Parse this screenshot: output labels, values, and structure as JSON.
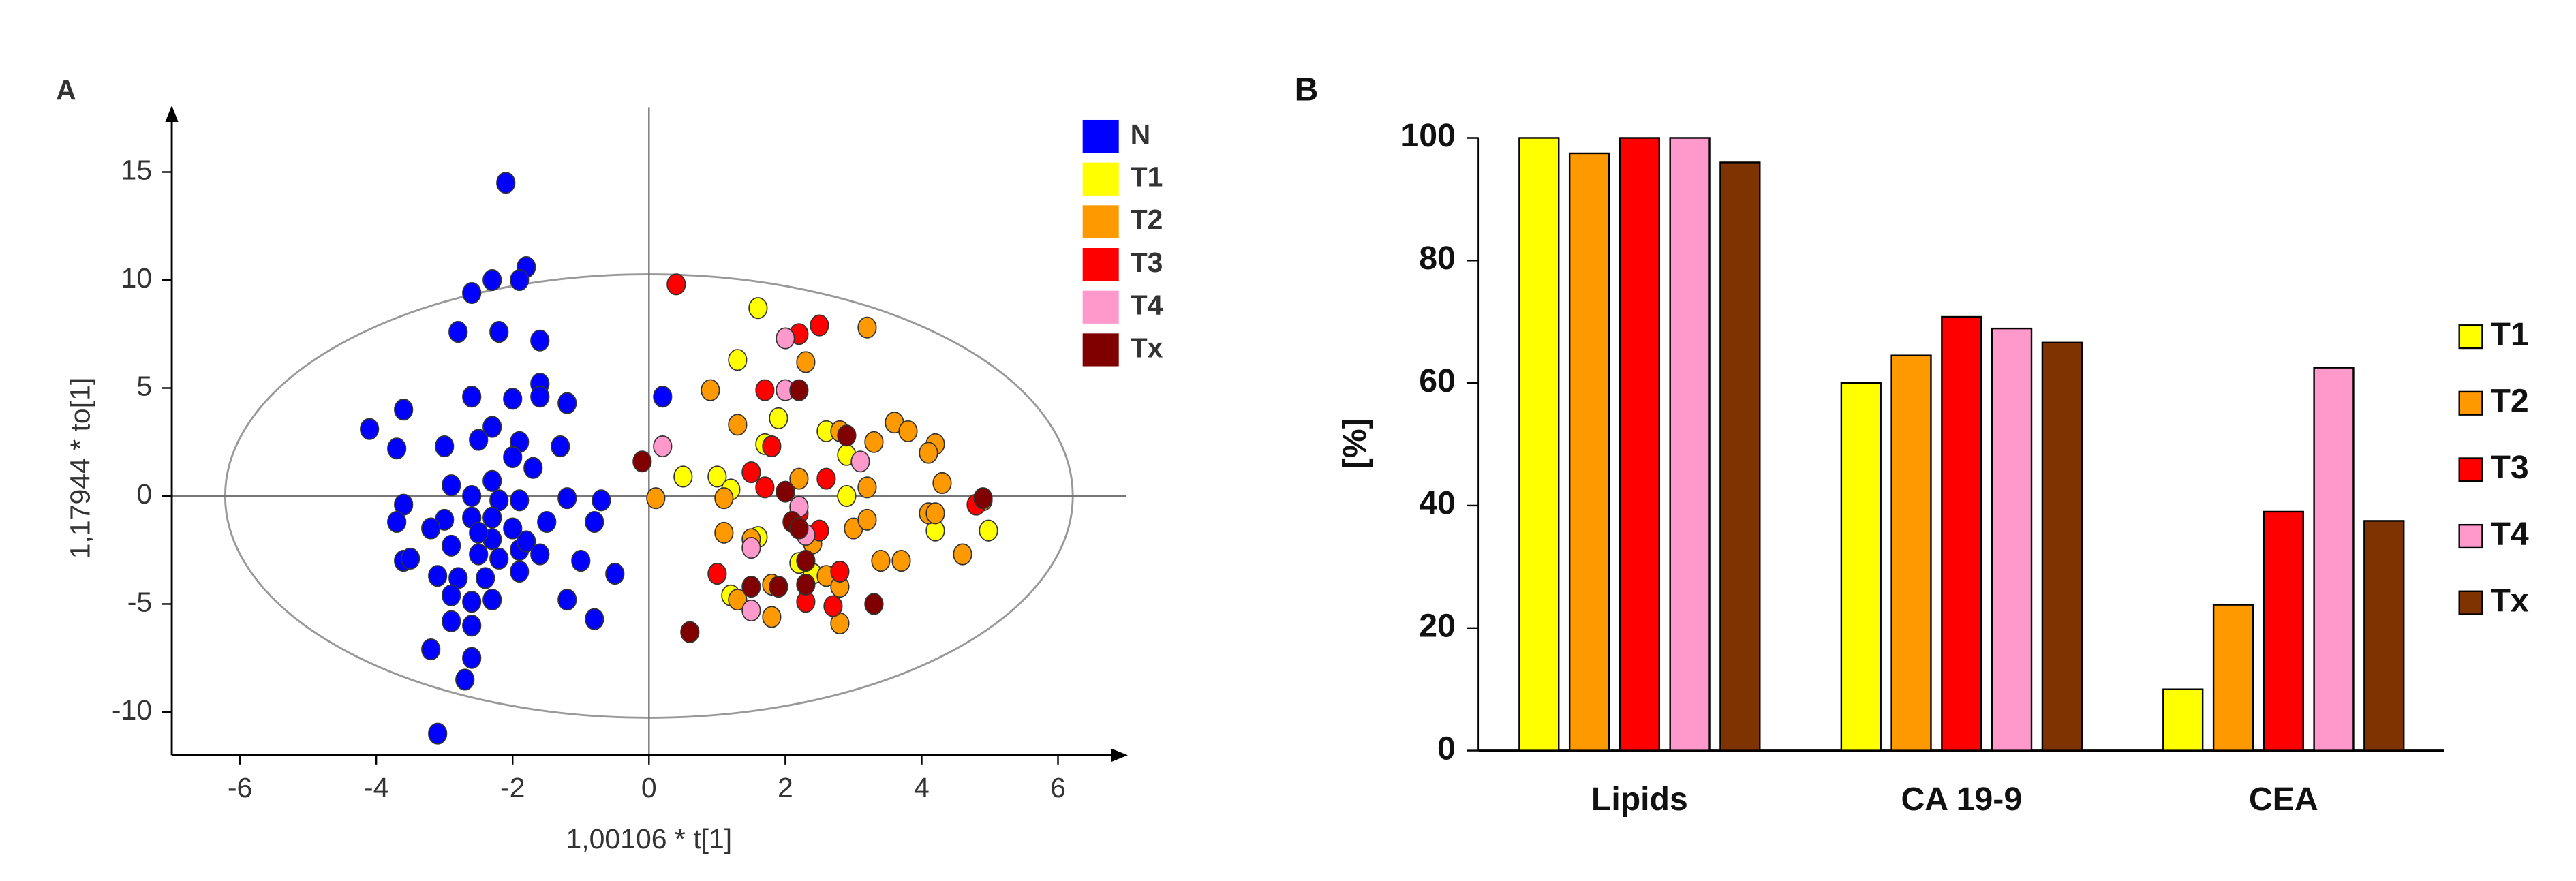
{
  "chart_data": [
    {
      "type": "scatter",
      "panel_label": "A",
      "xlabel": "1,00106 * t[1]",
      "ylabel": "1,17944 * to[1]",
      "xlim": [
        -7,
        7
      ],
      "ylim": [
        -12,
        18
      ],
      "xticks": [
        -6,
        -4,
        -2,
        0,
        2,
        4,
        6
      ],
      "yticks": [
        -10,
        -5,
        0,
        5,
        10,
        15
      ],
      "series": [
        {
          "name": "N",
          "color": "#0000ff",
          "x": [
            -2.1,
            -1.8,
            -1.9,
            -2.3,
            -2.6,
            -2.8,
            -2.2,
            -1.6,
            -4.1,
            -3.6,
            -1.6,
            -1.6,
            -1.2,
            -2.6,
            -2.0,
            0.2,
            -2.3,
            -2.5,
            -1.9,
            -1.3,
            -3.7,
            -3.0,
            -2.0,
            -1.7,
            -2.9,
            -2.3,
            -2.6,
            -2.2,
            -1.9,
            -3.6,
            -1.2,
            -0.7,
            -3.0,
            -2.6,
            -2.3,
            -3.2,
            -1.5,
            -0.8,
            -3.7,
            -1.9,
            -1.6,
            -2.5,
            -2.2,
            -3.6,
            -3.5,
            -1.0,
            -0.5,
            -3.1,
            -2.8,
            -2.4,
            -1.9,
            -2.9,
            -2.6,
            -2.3,
            -1.2,
            -0.8,
            -2.9,
            -2.6,
            -3.2,
            -2.6,
            -2.7,
            -3.1,
            -2.3,
            -2.9,
            -1.8,
            -2.0,
            -2.5
          ],
          "y": [
            14.5,
            10.6,
            10.0,
            10.0,
            9.4,
            7.6,
            7.6,
            7.2,
            3.1,
            4.0,
            5.2,
            4.6,
            4.3,
            4.6,
            4.5,
            4.6,
            3.2,
            2.6,
            2.5,
            2.3,
            2.2,
            2.3,
            1.8,
            1.3,
            0.5,
            0.7,
            0,
            -0.2,
            -0.2,
            -0.4,
            -0.1,
            -0.2,
            -1.1,
            -1.0,
            -1.0,
            -1.5,
            -1.2,
            -1.2,
            -1.2,
            -2.5,
            -2.7,
            -2.7,
            -2.9,
            -3.0,
            -2.9,
            -3.0,
            -3.6,
            -3.7,
            -3.8,
            -3.8,
            -3.5,
            -4.6,
            -4.9,
            -4.8,
            -4.8,
            -5.7,
            -5.8,
            -6.0,
            -7.1,
            -7.5,
            -8.5,
            -11.0,
            -2.0,
            -2.3,
            -2.1,
            -1.5,
            -1.7
          ]
        },
        {
          "name": "T1",
          "color": "#ffff00",
          "x": [
            1.6,
            1.3,
            1.9,
            1.7,
            2.6,
            2.9,
            0.5,
            1.0,
            1.2,
            2.9,
            4.2,
            4.98,
            1.6,
            2.4,
            1.2,
            2.2
          ],
          "y": [
            8.7,
            6.3,
            3.6,
            2.4,
            3.0,
            1.9,
            0.9,
            0.9,
            0.3,
            0,
            -1.6,
            -1.6,
            -1.9,
            -3.6,
            -4.6,
            -3.1
          ]
        },
        {
          "name": "T2",
          "color": "#ff9900",
          "x": [
            3.2,
            0.9,
            2.3,
            1.3,
            2.8,
            3.6,
            3.8,
            3.3,
            4.2,
            4.1,
            0.1,
            1.1,
            2.2,
            3.2,
            4.3,
            4.9,
            4.1,
            4.2,
            1.1,
            3.0,
            3.2,
            1.5,
            2.4,
            3.4,
            3.7,
            4.6,
            1.3,
            1.8,
            2.6,
            2.8,
            1.8,
            2.8
          ],
          "y": [
            7.8,
            4.9,
            6.2,
            3.3,
            3.0,
            3.4,
            3.0,
            2.5,
            2.4,
            2.0,
            -0.1,
            -0.1,
            0.8,
            0.4,
            0.6,
            -0.2,
            -0.8,
            -0.8,
            -1.7,
            -1.5,
            -1.1,
            -2.0,
            -2.2,
            -3.0,
            -3.0,
            -2.7,
            -4.8,
            -4.1,
            -3.7,
            -4.2,
            -5.6,
            -5.9
          ]
        },
        {
          "name": "T3",
          "color": "#ff0000",
          "x": [
            0.4,
            2.2,
            2.5,
            1.7,
            1.8,
            1.5,
            1.7,
            2.2,
            2.5,
            2.6,
            4.8,
            1.0,
            2.8,
            2.3,
            2.7
          ],
          "y": [
            9.8,
            7.5,
            7.9,
            4.9,
            2.3,
            1.1,
            0.4,
            -0.8,
            -1.6,
            0.8,
            -0.4,
            -3.6,
            -3.5,
            -4.9,
            -5.1
          ]
        },
        {
          "name": "T4",
          "color": "#ff99cc",
          "x": [
            2.0,
            2.0,
            0.2,
            3.1,
            2.2,
            1.5,
            2.3,
            1.5
          ],
          "y": [
            7.3,
            4.9,
            2.3,
            1.6,
            -0.5,
            -2.4,
            -1.8,
            -5.3
          ]
        },
        {
          "name": "Tx",
          "color": "#800000",
          "x": [
            -0.1,
            2.2,
            2.9,
            2.0,
            2.1,
            4.9,
            2.3,
            1.5,
            1.9,
            2.3,
            3.3,
            0.6,
            2.2
          ],
          "y": [
            1.6,
            4.9,
            2.8,
            0.2,
            -1.2,
            -0.1,
            -3.0,
            -4.2,
            -4.2,
            -4.1,
            -5.0,
            -6.3,
            -1.5
          ]
        }
      ]
    },
    {
      "type": "bar",
      "panel_label": "B",
      "ylabel": "[%]",
      "categories": [
        "Lipids",
        "CA 19-9",
        "CEA"
      ],
      "ylim": [
        0,
        100
      ],
      "yticks": [
        0,
        20,
        40,
        60,
        80,
        100
      ],
      "series": [
        {
          "name": "T1",
          "color": "#ffff00",
          "values": [
            100,
            60,
            10
          ]
        },
        {
          "name": "T2",
          "color": "#ff9900",
          "values": [
            97.5,
            64.5,
            23.8
          ]
        },
        {
          "name": "T3",
          "color": "#ff0000",
          "values": [
            100,
            70.8,
            39
          ]
        },
        {
          "name": "T4",
          "color": "#ff99cc",
          "values": [
            100,
            68.9,
            62.5
          ]
        },
        {
          "name": "Tx",
          "color": "#7f3300",
          "values": [
            96,
            66.6,
            37.5
          ]
        }
      ]
    }
  ]
}
